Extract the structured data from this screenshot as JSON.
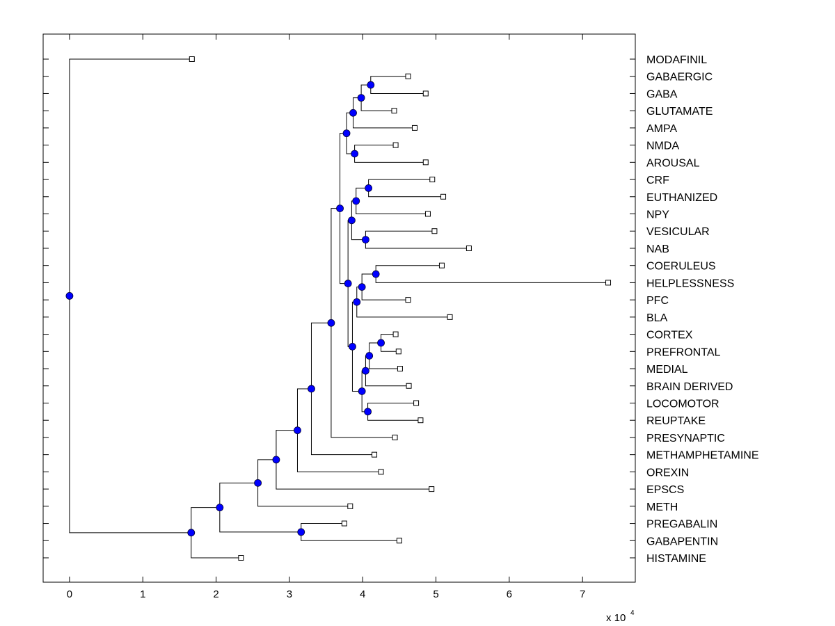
{
  "chart_data": {
    "type": "dendrogram",
    "title": "",
    "xlabel": "",
    "x_scale_label": "x 10",
    "x_scale_exponent": "4",
    "xlim": [
      -0.36,
      7.72
    ],
    "xticks": [
      0,
      1,
      2,
      3,
      4,
      5,
      6,
      7
    ],
    "xtick_labels": [
      "0",
      "1",
      "2",
      "3",
      "4",
      "5",
      "6",
      "7"
    ],
    "grid": false,
    "leaf_labels_side": "right",
    "colors": {
      "node": "#0000ff",
      "line": "#000000",
      "leaf_marker": "#ffffff"
    },
    "leaves": [
      {
        "name": "MODAFINIL",
        "x": 1.67
      },
      {
        "name": "GABAERGIC",
        "x": 4.62
      },
      {
        "name": "GABA",
        "x": 4.86
      },
      {
        "name": "GLUTAMATE",
        "x": 4.43
      },
      {
        "name": "AMPA",
        "x": 4.71
      },
      {
        "name": "NMDA",
        "x": 4.45
      },
      {
        "name": "AROUSAL",
        "x": 4.86
      },
      {
        "name": "CRF",
        "x": 4.95
      },
      {
        "name": "EUTHANIZED",
        "x": 5.1
      },
      {
        "name": "NPY",
        "x": 4.89
      },
      {
        "name": "VESICULAR",
        "x": 4.98
      },
      {
        "name": "NAB",
        "x": 5.45
      },
      {
        "name": "COERULEUS",
        "x": 5.08
      },
      {
        "name": "HELPLESSNESS",
        "x": 7.35
      },
      {
        "name": "PFC",
        "x": 4.62
      },
      {
        "name": "BLA",
        "x": 5.19
      },
      {
        "name": "CORTEX",
        "x": 4.45
      },
      {
        "name": "PREFRONTAL",
        "x": 4.49
      },
      {
        "name": "MEDIAL",
        "x": 4.51
      },
      {
        "name": "BRAIN DERIVED",
        "x": 4.63
      },
      {
        "name": "LOCOMOTOR",
        "x": 4.73
      },
      {
        "name": "REUPTAKE",
        "x": 4.79
      },
      {
        "name": "PRESYNAPTIC",
        "x": 4.44
      },
      {
        "name": "METHAMPHETAMINE",
        "x": 4.16
      },
      {
        "name": "OREXIN",
        "x": 4.25
      },
      {
        "name": "EPSCS",
        "x": 4.94
      },
      {
        "name": "METH",
        "x": 3.83
      },
      {
        "name": "PREGABALIN",
        "x": 3.75
      },
      {
        "name": "GABAPENTIN",
        "x": 4.5
      },
      {
        "name": "HISTAMINE",
        "x": 2.34
      }
    ],
    "nodes": [
      {
        "id": "root",
        "x": 0.0,
        "children": [
          "L:MODAFINIL",
          "A"
        ]
      },
      {
        "id": "A",
        "x": 1.66,
        "children": [
          "B",
          "L:HISTAMINE"
        ]
      },
      {
        "id": "B",
        "x": 2.05,
        "children": [
          "C",
          "D"
        ]
      },
      {
        "id": "D",
        "x": 3.16,
        "children": [
          "L:PREGABALIN",
          "L:GABAPENTIN"
        ]
      },
      {
        "id": "C",
        "x": 2.57,
        "children": [
          "E",
          "L:METH"
        ]
      },
      {
        "id": "E",
        "x": 2.82,
        "children": [
          "F",
          "L:EPSCS"
        ]
      },
      {
        "id": "F",
        "x": 3.11,
        "children": [
          "G",
          "L:OREXIN"
        ]
      },
      {
        "id": "G",
        "x": 3.3,
        "children": [
          "H",
          "L:METHAMPHETAMINE"
        ]
      },
      {
        "id": "H",
        "x": 3.57,
        "children": [
          "I",
          "L:PRESYNAPTIC"
        ]
      },
      {
        "id": "I",
        "x": 3.69,
        "children": [
          "J",
          "K"
        ]
      },
      {
        "id": "J",
        "x": 3.78,
        "children": [
          "L1",
          "M"
        ]
      },
      {
        "id": "L1",
        "x": 3.87,
        "children": [
          "N",
          "L:AMPA"
        ]
      },
      {
        "id": "N",
        "x": 3.98,
        "children": [
          "O",
          "L:GLUTAMATE"
        ]
      },
      {
        "id": "O",
        "x": 4.11,
        "children": [
          "L:GABAERGIC",
          "L:GABA"
        ]
      },
      {
        "id": "M",
        "x": 3.89,
        "children": [
          "L:NMDA",
          "L:AROUSAL"
        ]
      },
      {
        "id": "K",
        "x": 3.8,
        "children": [
          "P",
          "Q"
        ]
      },
      {
        "id": "P",
        "x": 3.85,
        "children": [
          "R",
          "S"
        ]
      },
      {
        "id": "R",
        "x": 3.91,
        "children": [
          "T",
          "L:NPY"
        ]
      },
      {
        "id": "T",
        "x": 4.08,
        "children": [
          "L:CRF",
          "L:EUTHANIZED"
        ]
      },
      {
        "id": "S",
        "x": 4.04,
        "children": [
          "L:VESICULAR",
          "L:NAB"
        ]
      },
      {
        "id": "Q",
        "x": 3.86,
        "children": [
          "U",
          "X"
        ]
      },
      {
        "id": "U",
        "x": 3.92,
        "children": [
          "V",
          "L:BLA"
        ]
      },
      {
        "id": "V",
        "x": 3.99,
        "children": [
          "W",
          "L:PFC"
        ]
      },
      {
        "id": "W",
        "x": 4.18,
        "children": [
          "L:COERULEUS",
          "L:HELPLESSNESS"
        ]
      },
      {
        "id": "X",
        "x": 3.99,
        "children": [
          "Y",
          "AB"
        ]
      },
      {
        "id": "Y",
        "x": 4.04,
        "children": [
          "Z",
          "L:BRAIN DERIVED"
        ]
      },
      {
        "id": "Z",
        "x": 4.09,
        "children": [
          "AA",
          "L:MEDIAL"
        ]
      },
      {
        "id": "AA",
        "x": 4.25,
        "children": [
          "L:CORTEX",
          "L:PREFRONTAL"
        ]
      },
      {
        "id": "AB",
        "x": 4.07,
        "children": [
          "L:LOCOMOTOR",
          "L:REUPTAKE"
        ]
      }
    ]
  }
}
